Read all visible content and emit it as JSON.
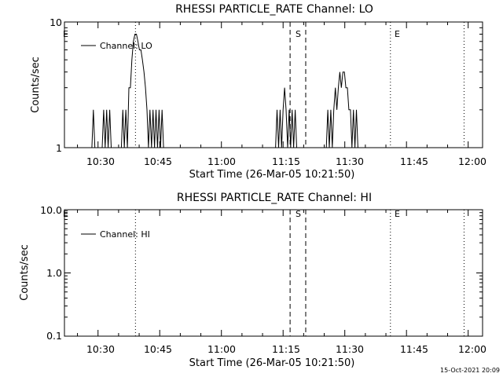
{
  "chart_data": [
    {
      "type": "line",
      "title": "RHESSI PARTICLE_RATE Channel: LO",
      "xlabel": "Start Time (26-Mar-05 10:21:50)",
      "ylabel": "Counts/sec",
      "yscale": "log",
      "ylim": [
        1,
        10
      ],
      "xlim": [
        "10:21:50",
        "12:03:30"
      ],
      "xticks": [
        "10:30",
        "10:45",
        "11:00",
        "11:15",
        "11:30",
        "11:45",
        "12:00"
      ],
      "yticks": [
        "1",
        "10"
      ],
      "legend": {
        "position": "top-left",
        "entries": [
          "Channel: LO"
        ]
      },
      "grid": false,
      "markers": [
        {
          "time": "10:39:06",
          "style": "dotted",
          "label": "E"
        },
        {
          "time": "11:16:42",
          "style": "dashed",
          "label": "S"
        },
        {
          "time": "11:20:30",
          "style": "dashed",
          "label": ""
        },
        {
          "time": "11:41:06",
          "style": "dotted",
          "label": "E"
        },
        {
          "time": "11:59:00",
          "style": "dotted",
          "label": ""
        }
      ],
      "series": [
        {
          "name": "Channel: LO",
          "x": [
            "10:21:50",
            "10:28:30",
            "10:28:52",
            "10:29:14",
            "10:29:36",
            "10:31:00",
            "10:31:22",
            "10:31:44",
            "10:32:06",
            "10:32:28",
            "10:32:50",
            "10:33:12",
            "10:33:34",
            "10:35:40",
            "10:36:02",
            "10:36:24",
            "10:36:46",
            "10:37:08",
            "10:37:30",
            "10:37:52",
            "10:38:14",
            "10:38:36",
            "10:38:58",
            "10:39:20",
            "10:39:42",
            "10:40:04",
            "10:40:26",
            "10:40:48",
            "10:41:10",
            "10:41:32",
            "10:41:54",
            "10:42:16",
            "10:42:38",
            "10:43:00",
            "10:43:22",
            "10:43:44",
            "10:44:06",
            "10:44:28",
            "10:44:50",
            "10:45:12",
            "10:45:34",
            "10:45:56",
            "10:46:18",
            "11:13:10",
            "11:13:32",
            "11:13:54",
            "11:14:16",
            "11:14:38",
            "11:15:00",
            "11:15:22",
            "11:15:44",
            "11:16:06",
            "11:16:28",
            "11:16:50",
            "11:17:12",
            "11:17:34",
            "11:17:56",
            "11:18:18",
            "11:18:40",
            "11:25:30",
            "11:25:52",
            "11:26:14",
            "11:26:36",
            "11:26:58",
            "11:27:20",
            "11:27:42",
            "11:28:04",
            "11:28:26",
            "11:28:48",
            "11:29:10",
            "11:29:32",
            "11:29:54",
            "11:30:16",
            "11:30:38",
            "11:31:00",
            "11:31:22",
            "11:31:44",
            "11:32:06",
            "11:32:28",
            "11:32:50",
            "11:33:12",
            "11:33:34",
            "11:33:56",
            "12:03:30"
          ],
          "y": [
            0,
            0,
            2,
            0,
            0,
            0,
            2,
            0,
            2,
            0,
            2,
            0,
            0,
            0,
            2,
            0,
            2,
            1,
            3,
            3,
            5,
            7,
            8,
            8,
            7,
            6,
            6,
            5,
            4,
            3,
            2,
            0,
            2,
            0,
            2,
            0,
            2,
            0,
            2,
            0,
            2,
            0,
            0,
            0,
            2,
            0,
            2,
            0,
            2,
            3,
            2,
            0,
            2,
            0,
            2,
            0,
            2,
            0,
            0,
            0,
            2,
            0,
            2,
            0,
            2,
            3,
            2,
            3,
            4,
            3,
            4,
            4,
            3,
            3,
            2,
            2,
            0,
            2,
            0,
            2,
            1,
            0,
            0,
            0
          ]
        }
      ]
    },
    {
      "type": "line",
      "title": "RHESSI PARTICLE_RATE Channel: HI",
      "xlabel": "Start Time (26-Mar-05 10:21:50)",
      "ylabel": "Counts/sec",
      "yscale": "log",
      "ylim": [
        0.1,
        10
      ],
      "xlim": [
        "10:21:50",
        "12:03:30"
      ],
      "xticks": [
        "10:30",
        "10:45",
        "11:00",
        "11:15",
        "11:30",
        "11:45",
        "12:00"
      ],
      "yticks": [
        "0.1",
        "1.0",
        "10.0"
      ],
      "legend": {
        "position": "top-left",
        "entries": [
          "Channel: HI"
        ]
      },
      "grid": false,
      "markers": [
        {
          "time": "10:39:06",
          "style": "dotted",
          "label": "E"
        },
        {
          "time": "11:16:42",
          "style": "dashed",
          "label": "S"
        },
        {
          "time": "11:20:30",
          "style": "dashed",
          "label": ""
        },
        {
          "time": "11:41:06",
          "style": "dotted",
          "label": "E"
        },
        {
          "time": "11:59:00",
          "style": "dotted",
          "label": ""
        }
      ],
      "series": [
        {
          "name": "Channel: HI",
          "x": [],
          "y": []
        }
      ]
    }
  ],
  "footer": {
    "timestamp": "15-Oct-2021 20:09"
  }
}
